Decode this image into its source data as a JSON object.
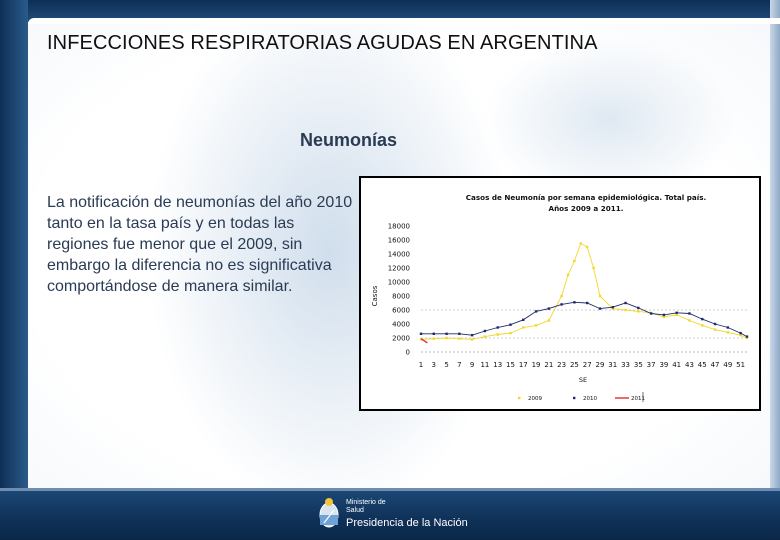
{
  "slide": {
    "title": "INFECCIONES RESPIRATORIAS AGUDAS EN ARGENTINA",
    "subtitle": "Neumonías",
    "body": "La notificación de neumonías del año 2010  tanto en la tasa país y  en todas las regiones fue menor que el 2009, sin embargo la diferencia no es significativa comportándose de manera similar."
  },
  "footer": {
    "ministry_line1": "Ministerio de",
    "ministry_line2": "Salud",
    "presidency": "Presidencia de la Nación"
  },
  "colors": {
    "series_2009": "#f2d829",
    "series_2010": "#1f2a6b",
    "series_2011": "#e22a2a"
  },
  "chart_data": {
    "type": "line",
    "title_line1": "Casos  de Neumonía por semana epidemiológica. Total país.",
    "title_line2": "Años 2009 a 2011.",
    "xlabel": "SE",
    "ylabel": "Casos",
    "ylim": [
      0,
      18000
    ],
    "y_ticks": [
      0,
      2000,
      4000,
      6000,
      8000,
      10000,
      12000,
      14000,
      16000,
      18000
    ],
    "x_ticks": [
      "1",
      "3",
      "5",
      "7",
      "9",
      "11",
      "13",
      "15",
      "17",
      "19",
      "21",
      "23",
      "25",
      "27",
      "29",
      "31",
      "33",
      "35",
      "37",
      "39",
      "41",
      "43",
      "45",
      "47",
      "49",
      "51"
    ],
    "gridlines": [
      2000,
      6000
    ],
    "series": [
      {
        "name": "2009",
        "x": [
          1,
          3,
          5,
          7,
          9,
          11,
          13,
          15,
          17,
          19,
          21,
          23,
          24,
          25,
          26,
          27,
          28,
          29,
          31,
          33,
          35,
          37,
          39,
          41,
          43,
          45,
          47,
          49,
          51,
          52
        ],
        "values": [
          1800,
          1900,
          2000,
          1900,
          1800,
          2200,
          2500,
          2700,
          3500,
          3800,
          4500,
          8000,
          11000,
          13000,
          15500,
          15000,
          12000,
          8000,
          6200,
          6000,
          5800,
          5600,
          5000,
          5300,
          4500,
          3800,
          3200,
          2800,
          2400,
          2000
        ]
      },
      {
        "name": "2010",
        "x": [
          1,
          3,
          5,
          7,
          9,
          11,
          13,
          15,
          17,
          19,
          21,
          23,
          25,
          27,
          29,
          31,
          33,
          35,
          37,
          39,
          41,
          43,
          45,
          47,
          49,
          51,
          52
        ],
        "values": [
          2600,
          2600,
          2600,
          2600,
          2400,
          3000,
          3500,
          3900,
          4600,
          5800,
          6200,
          6800,
          7100,
          7000,
          6200,
          6400,
          7000,
          6300,
          5500,
          5300,
          5600,
          5500,
          4700,
          4000,
          3500,
          2700,
          2200
        ]
      },
      {
        "name": "2011",
        "x": [
          1,
          2
        ],
        "values": [
          1900,
          1300
        ]
      }
    ]
  }
}
